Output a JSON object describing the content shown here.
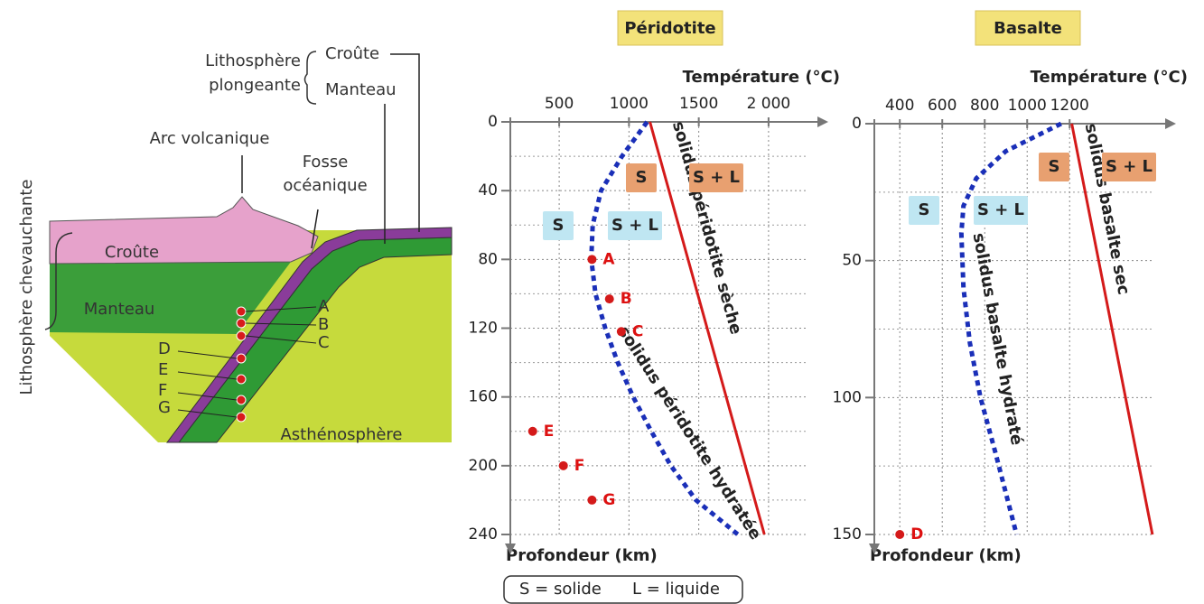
{
  "diagram": {
    "side_label": "Lithosphère chevauchante",
    "plongeante": [
      "Lithosphère",
      "plongeante"
    ],
    "layers": [
      "Croûte",
      "Manteau"
    ],
    "arc": "Arc volcanique",
    "fosse": [
      "Fosse",
      "océanique"
    ],
    "crust": "Croûte",
    "mantle": "Manteau",
    "asthenosphere": "Asthénosphère",
    "letters": [
      "A",
      "B",
      "C",
      "D",
      "E",
      "F",
      "G"
    ]
  },
  "legend_note": [
    "S = solide",
    "L = liquide"
  ],
  "chart_data": [
    {
      "type": "line",
      "title": "Péridotite",
      "x_label": "Température (°C)",
      "y_label": "Profondeur (km)",
      "xlim": [
        150,
        2350
      ],
      "xticks": [
        500,
        1000,
        1500,
        {
          "value": 2000,
          "label": "2 000"
        }
      ],
      "ylim": [
        0,
        240
      ],
      "y_inverted": true,
      "yticks": [
        0,
        40,
        80,
        120,
        160,
        200,
        240
      ],
      "y_minor_ticks": [
        20,
        60,
        100,
        140,
        180,
        220
      ],
      "grid": true,
      "series": [
        {
          "name": "solidus péridotite sèche",
          "color": "#d41a1a",
          "dashed": false,
          "x": [
            1150,
            1970
          ],
          "values": [
            0,
            240
          ]
        },
        {
          "name": "solidus péridotite hydratée",
          "color": "#1a2fb8",
          "dashed": true,
          "x": [
            1130,
            950,
            800,
            740,
            730,
            760,
            830,
            920,
            1030,
            1160,
            1300,
            1480,
            1780
          ],
          "values": [
            0,
            20,
            40,
            60,
            80,
            100,
            120,
            140,
            160,
            180,
            200,
            220,
            240
          ]
        }
      ],
      "points": {
        "color": "#d41a1a",
        "labels": [
          "A",
          "B",
          "C",
          "E",
          "F",
          "G"
        ],
        "x": [
          735,
          860,
          945,
          310,
          530,
          735
        ],
        "values": [
          80,
          103,
          122,
          180,
          200,
          220
        ]
      },
      "regions": [
        "S",
        "S + L",
        "S",
        "S + L"
      ]
    },
    {
      "type": "line",
      "title": "Basalte",
      "x_label": "Température (°C)",
      "y_label": "Profondeur (km)",
      "xlim": [
        280,
        1650
      ],
      "xticks": [
        400,
        600,
        800,
        1000,
        1200
      ],
      "ylim": [
        0,
        150
      ],
      "y_inverted": true,
      "yticks": [
        0,
        50,
        100,
        150
      ],
      "y_minor_ticks": [
        25,
        75,
        125
      ],
      "grid": true,
      "series": [
        {
          "name": "solidus basalte sec",
          "color": "#d41a1a",
          "dashed": false,
          "x": [
            1210,
            1590
          ],
          "values": [
            0,
            150
          ]
        },
        {
          "name": "solidus basalte hydraté",
          "color": "#1a2fb8",
          "dashed": true,
          "x": [
            1160,
            900,
            760,
            700,
            690,
            700,
            730,
            780,
            850,
            950
          ],
          "values": [
            0,
            10,
            20,
            30,
            40,
            60,
            80,
            100,
            120,
            150
          ]
        }
      ],
      "points": {
        "color": "#d41a1a",
        "labels": [
          "D"
        ],
        "x": [
          400
        ],
        "values": [
          150
        ]
      },
      "regions": [
        "S",
        "S + L",
        "S",
        "S + L"
      ]
    }
  ]
}
